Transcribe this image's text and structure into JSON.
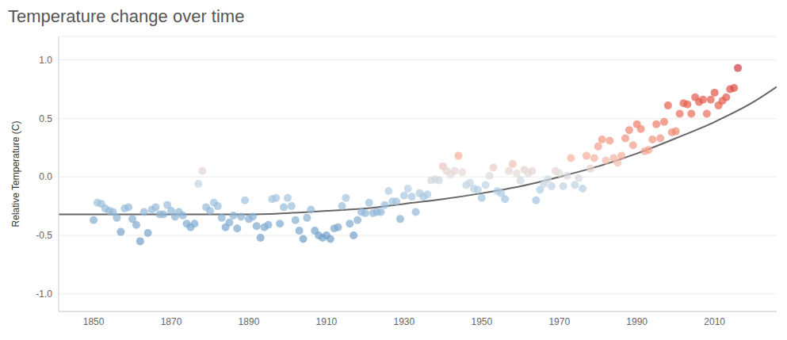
{
  "chart_data": {
    "type": "scatter",
    "title": "Temperature change over time",
    "y_label": "Relative Temperature (C)",
    "xlim": [
      1841,
      2026
    ],
    "xticks": [
      1850,
      1870,
      1890,
      1910,
      1930,
      1950,
      1970,
      1990,
      2010
    ],
    "ylim": [
      -1.15,
      1.2
    ],
    "yticks": [
      {
        "value": -1,
        "label": "-1.0"
      },
      -0.5,
      {
        "value": 0,
        "label": "0.0"
      },
      0.5,
      {
        "value": 1,
        "label": "1.0"
      }
    ],
    "grid": true,
    "series": [
      {
        "type": "scatter",
        "marker": "circle",
        "x": [
          1850,
          1851,
          1852,
          1853,
          1854,
          1855,
          1856,
          1857,
          1858,
          1859,
          1860,
          1861,
          1862,
          1863,
          1864,
          1865,
          1866,
          1867,
          1868,
          1869,
          1870,
          1871,
          1872,
          1873,
          1874,
          1875,
          1876,
          1877,
          1878,
          1879,
          1880,
          1881,
          1882,
          1883,
          1884,
          1885,
          1886,
          1887,
          1888,
          1889,
          1890,
          1891,
          1892,
          1893,
          1894,
          1895,
          1896,
          1897,
          1898,
          1899,
          1900,
          1901,
          1902,
          1903,
          1904,
          1905,
          1906,
          1907,
          1908,
          1909,
          1910,
          1911,
          1912,
          1913,
          1914,
          1915,
          1916,
          1917,
          1918,
          1919,
          1920,
          1921,
          1922,
          1923,
          1924,
          1925,
          1926,
          1927,
          1928,
          1929,
          1930,
          1931,
          1932,
          1933,
          1934,
          1935,
          1936,
          1937,
          1938,
          1939,
          1940,
          1941,
          1942,
          1943,
          1944,
          1945,
          1946,
          1947,
          1948,
          1949,
          1950,
          1951,
          1952,
          1953,
          1954,
          1955,
          1956,
          1957,
          1958,
          1959,
          1960,
          1961,
          1962,
          1963,
          1964,
          1965,
          1966,
          1967,
          1968,
          1969,
          1970,
          1971,
          1972,
          1973,
          1974,
          1975,
          1976,
          1977,
          1978,
          1979,
          1980,
          1981,
          1982,
          1983,
          1984,
          1985,
          1986,
          1987,
          1988,
          1989,
          1990,
          1991,
          1992,
          1993,
          1994,
          1995,
          1996,
          1997,
          1998,
          1999,
          2000,
          2001,
          2002,
          2003,
          2004,
          2005,
          2006,
          2007,
          2008,
          2009,
          2010,
          2011,
          2012,
          2013,
          2014,
          2015,
          2016
        ],
        "values": [
          -0.37,
          -0.22,
          -0.23,
          -0.27,
          -0.29,
          -0.3,
          -0.35,
          -0.47,
          -0.27,
          -0.26,
          -0.36,
          -0.41,
          -0.55,
          -0.3,
          -0.48,
          -0.28,
          -0.26,
          -0.32,
          -0.32,
          -0.24,
          -0.29,
          -0.34,
          -0.3,
          -0.33,
          -0.4,
          -0.43,
          -0.4,
          -0.06,
          0.05,
          -0.26,
          -0.29,
          -0.22,
          -0.25,
          -0.35,
          -0.43,
          -0.39,
          -0.33,
          -0.44,
          -0.34,
          -0.2,
          -0.36,
          -0.34,
          -0.42,
          -0.52,
          -0.43,
          -0.41,
          -0.19,
          -0.18,
          -0.4,
          -0.26,
          -0.18,
          -0.25,
          -0.37,
          -0.46,
          -0.53,
          -0.35,
          -0.28,
          -0.46,
          -0.5,
          -0.52,
          -0.5,
          -0.53,
          -0.44,
          -0.43,
          -0.25,
          -0.18,
          -0.4,
          -0.5,
          -0.37,
          -0.3,
          -0.31,
          -0.22,
          -0.31,
          -0.3,
          -0.3,
          -0.24,
          -0.12,
          -0.21,
          -0.21,
          -0.36,
          -0.16,
          -0.1,
          -0.17,
          -0.3,
          -0.14,
          -0.17,
          -0.15,
          -0.03,
          -0.02,
          -0.03,
          0.09,
          0.05,
          0.02,
          0.05,
          0.18,
          0.04,
          -0.07,
          -0.05,
          -0.1,
          -0.11,
          -0.18,
          -0.07,
          0.01,
          0.08,
          -0.12,
          -0.14,
          -0.19,
          0.05,
          0.11,
          0.03,
          -0.03,
          0.06,
          0.03,
          0.05,
          -0.2,
          -0.11,
          -0.06,
          -0.02,
          -0.08,
          0.05,
          0.03,
          -0.08,
          0.01,
          0.16,
          -0.07,
          -0.01,
          -0.1,
          0.18,
          0.07,
          0.16,
          0.26,
          0.32,
          0.14,
          0.31,
          0.16,
          0.12,
          0.18,
          0.33,
          0.4,
          0.27,
          0.45,
          0.41,
          0.22,
          0.23,
          0.32,
          0.45,
          0.33,
          0.47,
          0.61,
          0.38,
          0.39,
          0.54,
          0.63,
          0.62,
          0.54,
          0.68,
          0.64,
          0.66,
          0.54,
          0.66,
          0.72,
          0.61,
          0.65,
          0.68,
          0.75,
          0.76,
          0.93
        ]
      },
      {
        "type": "line",
        "line_style": "solid",
        "color": "#666666",
        "x": [
          1841,
          1850,
          1860,
          1870,
          1880,
          1890,
          1900,
          1910,
          1920,
          1930,
          1940,
          1950,
          1960,
          1970,
          1980,
          1990,
          2000,
          2010,
          2020,
          2026
        ],
        "values": [
          -0.32,
          -0.32,
          -0.32,
          -0.32,
          -0.32,
          -0.32,
          -0.31,
          -0.29,
          -0.27,
          -0.23,
          -0.19,
          -0.14,
          -0.08,
          0.0,
          0.09,
          0.2,
          0.33,
          0.47,
          0.64,
          0.77
        ]
      }
    ]
  }
}
